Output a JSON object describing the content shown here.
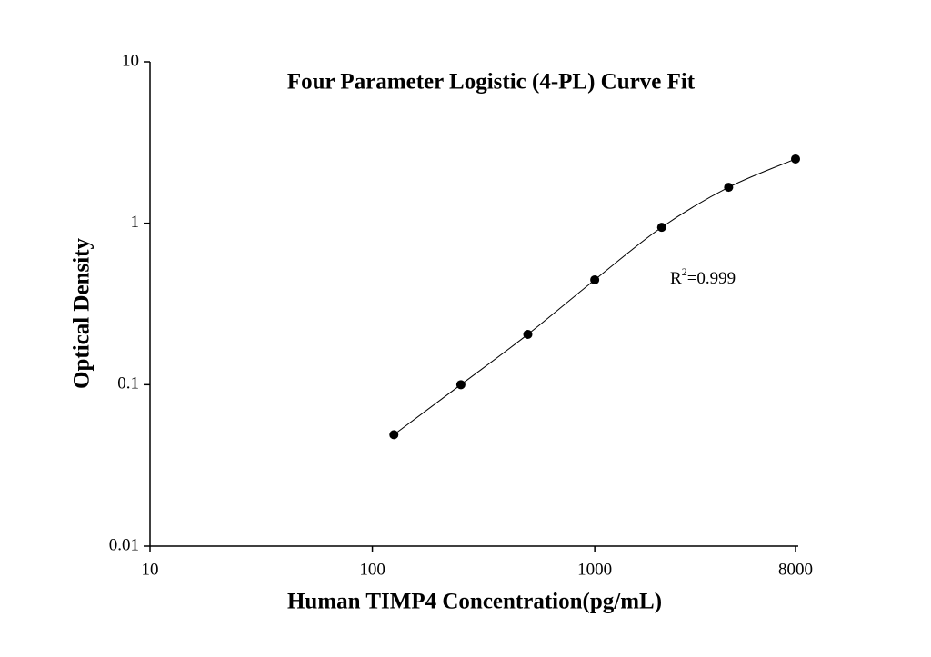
{
  "chart_data": {
    "type": "scatter",
    "title": "Four Parameter Logistic (4-PL) Curve Fit",
    "x_label": "Human TIMP4 Concentration(pg/mL)",
    "y_label": "Optical Density",
    "x": [
      125,
      250,
      500,
      1000,
      2000,
      4000,
      8000
    ],
    "series": [
      {
        "color": "#000000",
        "values": [
          0.049,
          0.1,
          0.205,
          0.446,
          0.944,
          1.67,
          2.5
        ],
        "fit_curve": true
      }
    ],
    "xlim": [
      10,
      8000
    ],
    "ylim": [
      0.01,
      10
    ],
    "xticks": [
      10,
      100,
      1000,
      8000
    ],
    "yticks": [
      0.01,
      0.1,
      1,
      10
    ],
    "xscale": "log",
    "yscale": "log",
    "grid": false,
    "annotation": [
      "R",
      "2",
      "=0.999"
    ]
  }
}
